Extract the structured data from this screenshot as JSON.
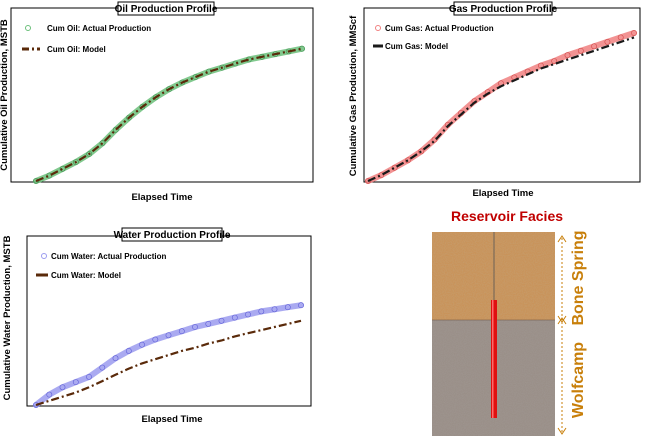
{
  "chart_data": [
    {
      "type": "line",
      "title": "Oil Production Profile",
      "xlabel": "Elapsed Time",
      "ylabel": "Cumulative Oil Production, MSTB",
      "colors": {
        "actual": "#6bbf7a",
        "actual_edge": "#3f8f4f",
        "model": "#5a2a0a"
      },
      "series": [
        {
          "name": "Cum Oil: Actual Production",
          "style": "markers",
          "x": [
            0,
            0.05,
            0.1,
            0.15,
            0.2,
            0.25,
            0.3,
            0.35,
            0.4,
            0.45,
            0.5,
            0.55,
            0.6,
            0.65,
            0.7,
            0.75,
            0.8,
            0.85,
            0.9,
            0.95,
            1.0
          ],
          "y": [
            0,
            0.04,
            0.09,
            0.14,
            0.2,
            0.28,
            0.38,
            0.47,
            0.55,
            0.62,
            0.68,
            0.73,
            0.77,
            0.81,
            0.84,
            0.87,
            0.9,
            0.92,
            0.94,
            0.96,
            0.98
          ]
        },
        {
          "name": "Cum Oil: Model",
          "style": "dashdot",
          "x": [
            0,
            0.05,
            0.1,
            0.15,
            0.2,
            0.25,
            0.3,
            0.35,
            0.4,
            0.45,
            0.5,
            0.55,
            0.6,
            0.65,
            0.7,
            0.75,
            0.8,
            0.85,
            0.9,
            0.95,
            1.0
          ],
          "y": [
            0,
            0.04,
            0.09,
            0.14,
            0.2,
            0.28,
            0.38,
            0.47,
            0.55,
            0.62,
            0.68,
            0.73,
            0.77,
            0.81,
            0.84,
            0.87,
            0.9,
            0.92,
            0.94,
            0.96,
            0.98
          ]
        }
      ]
    },
    {
      "type": "line",
      "title": "Gas Production Profile",
      "xlabel": "Elapsed Time",
      "ylabel": "Cumulative Gas Production, MMScf",
      "colors": {
        "actual": "#f08080",
        "actual_edge": "#d04848",
        "model": "#1a1a1a"
      },
      "series": [
        {
          "name": "Cum Gas: Actual Production",
          "style": "markers",
          "x": [
            0,
            0.05,
            0.1,
            0.15,
            0.2,
            0.25,
            0.3,
            0.35,
            0.4,
            0.45,
            0.5,
            0.55,
            0.6,
            0.65,
            0.7,
            0.75,
            0.8,
            0.85,
            0.9,
            0.95,
            1.0
          ],
          "y": [
            0,
            0.04,
            0.09,
            0.14,
            0.2,
            0.28,
            0.38,
            0.46,
            0.54,
            0.6,
            0.66,
            0.7,
            0.74,
            0.78,
            0.81,
            0.85,
            0.88,
            0.91,
            0.94,
            0.97,
            1.0
          ]
        },
        {
          "name": "Cum Gas: Model",
          "style": "dashdot",
          "x": [
            0,
            0.05,
            0.1,
            0.15,
            0.2,
            0.25,
            0.3,
            0.35,
            0.4,
            0.45,
            0.5,
            0.55,
            0.6,
            0.65,
            0.7,
            0.75,
            0.8,
            0.85,
            0.9,
            0.95,
            1.0
          ],
          "y": [
            0,
            0.04,
            0.09,
            0.14,
            0.2,
            0.27,
            0.37,
            0.45,
            0.53,
            0.59,
            0.64,
            0.68,
            0.72,
            0.76,
            0.79,
            0.82,
            0.85,
            0.88,
            0.91,
            0.94,
            0.97
          ]
        }
      ]
    },
    {
      "type": "line",
      "title": "Water Production Profile",
      "xlabel": "Elapsed Time",
      "ylabel": "Cumulative Water Production, MSTB",
      "colors": {
        "actual": "#9b9bef",
        "actual_edge": "#5e5ed6",
        "model": "#5a2a0a"
      },
      "series": [
        {
          "name": "Cum Water: Actual Production",
          "style": "markers",
          "x": [
            0,
            0.05,
            0.1,
            0.15,
            0.2,
            0.25,
            0.3,
            0.35,
            0.4,
            0.45,
            0.5,
            0.55,
            0.6,
            0.65,
            0.7,
            0.75,
            0.8,
            0.85,
            0.9,
            0.95,
            1.0
          ],
          "y": [
            0,
            0.1,
            0.17,
            0.22,
            0.27,
            0.36,
            0.45,
            0.52,
            0.58,
            0.63,
            0.67,
            0.71,
            0.75,
            0.78,
            0.81,
            0.84,
            0.87,
            0.9,
            0.92,
            0.94,
            0.96
          ]
        },
        {
          "name": "Cum Water: Model",
          "style": "dashdot",
          "x": [
            0,
            0.05,
            0.1,
            0.15,
            0.2,
            0.25,
            0.3,
            0.35,
            0.4,
            0.45,
            0.5,
            0.55,
            0.6,
            0.65,
            0.7,
            0.75,
            0.8,
            0.85,
            0.9,
            0.95,
            1.0
          ],
          "y": [
            0,
            0.04,
            0.08,
            0.12,
            0.17,
            0.23,
            0.29,
            0.35,
            0.4,
            0.44,
            0.48,
            0.52,
            0.55,
            0.59,
            0.62,
            0.66,
            0.69,
            0.72,
            0.75,
            0.78,
            0.81
          ]
        }
      ]
    }
  ],
  "facies": {
    "title": "Reservoir Facies",
    "upper_zone": "Bone Spring",
    "lower_zone": "Wolfcamp",
    "colors": {
      "upper": "#c9935a",
      "lower": "#9a8f88",
      "well": "#e01010",
      "zone_text": "#c87f0a"
    }
  }
}
